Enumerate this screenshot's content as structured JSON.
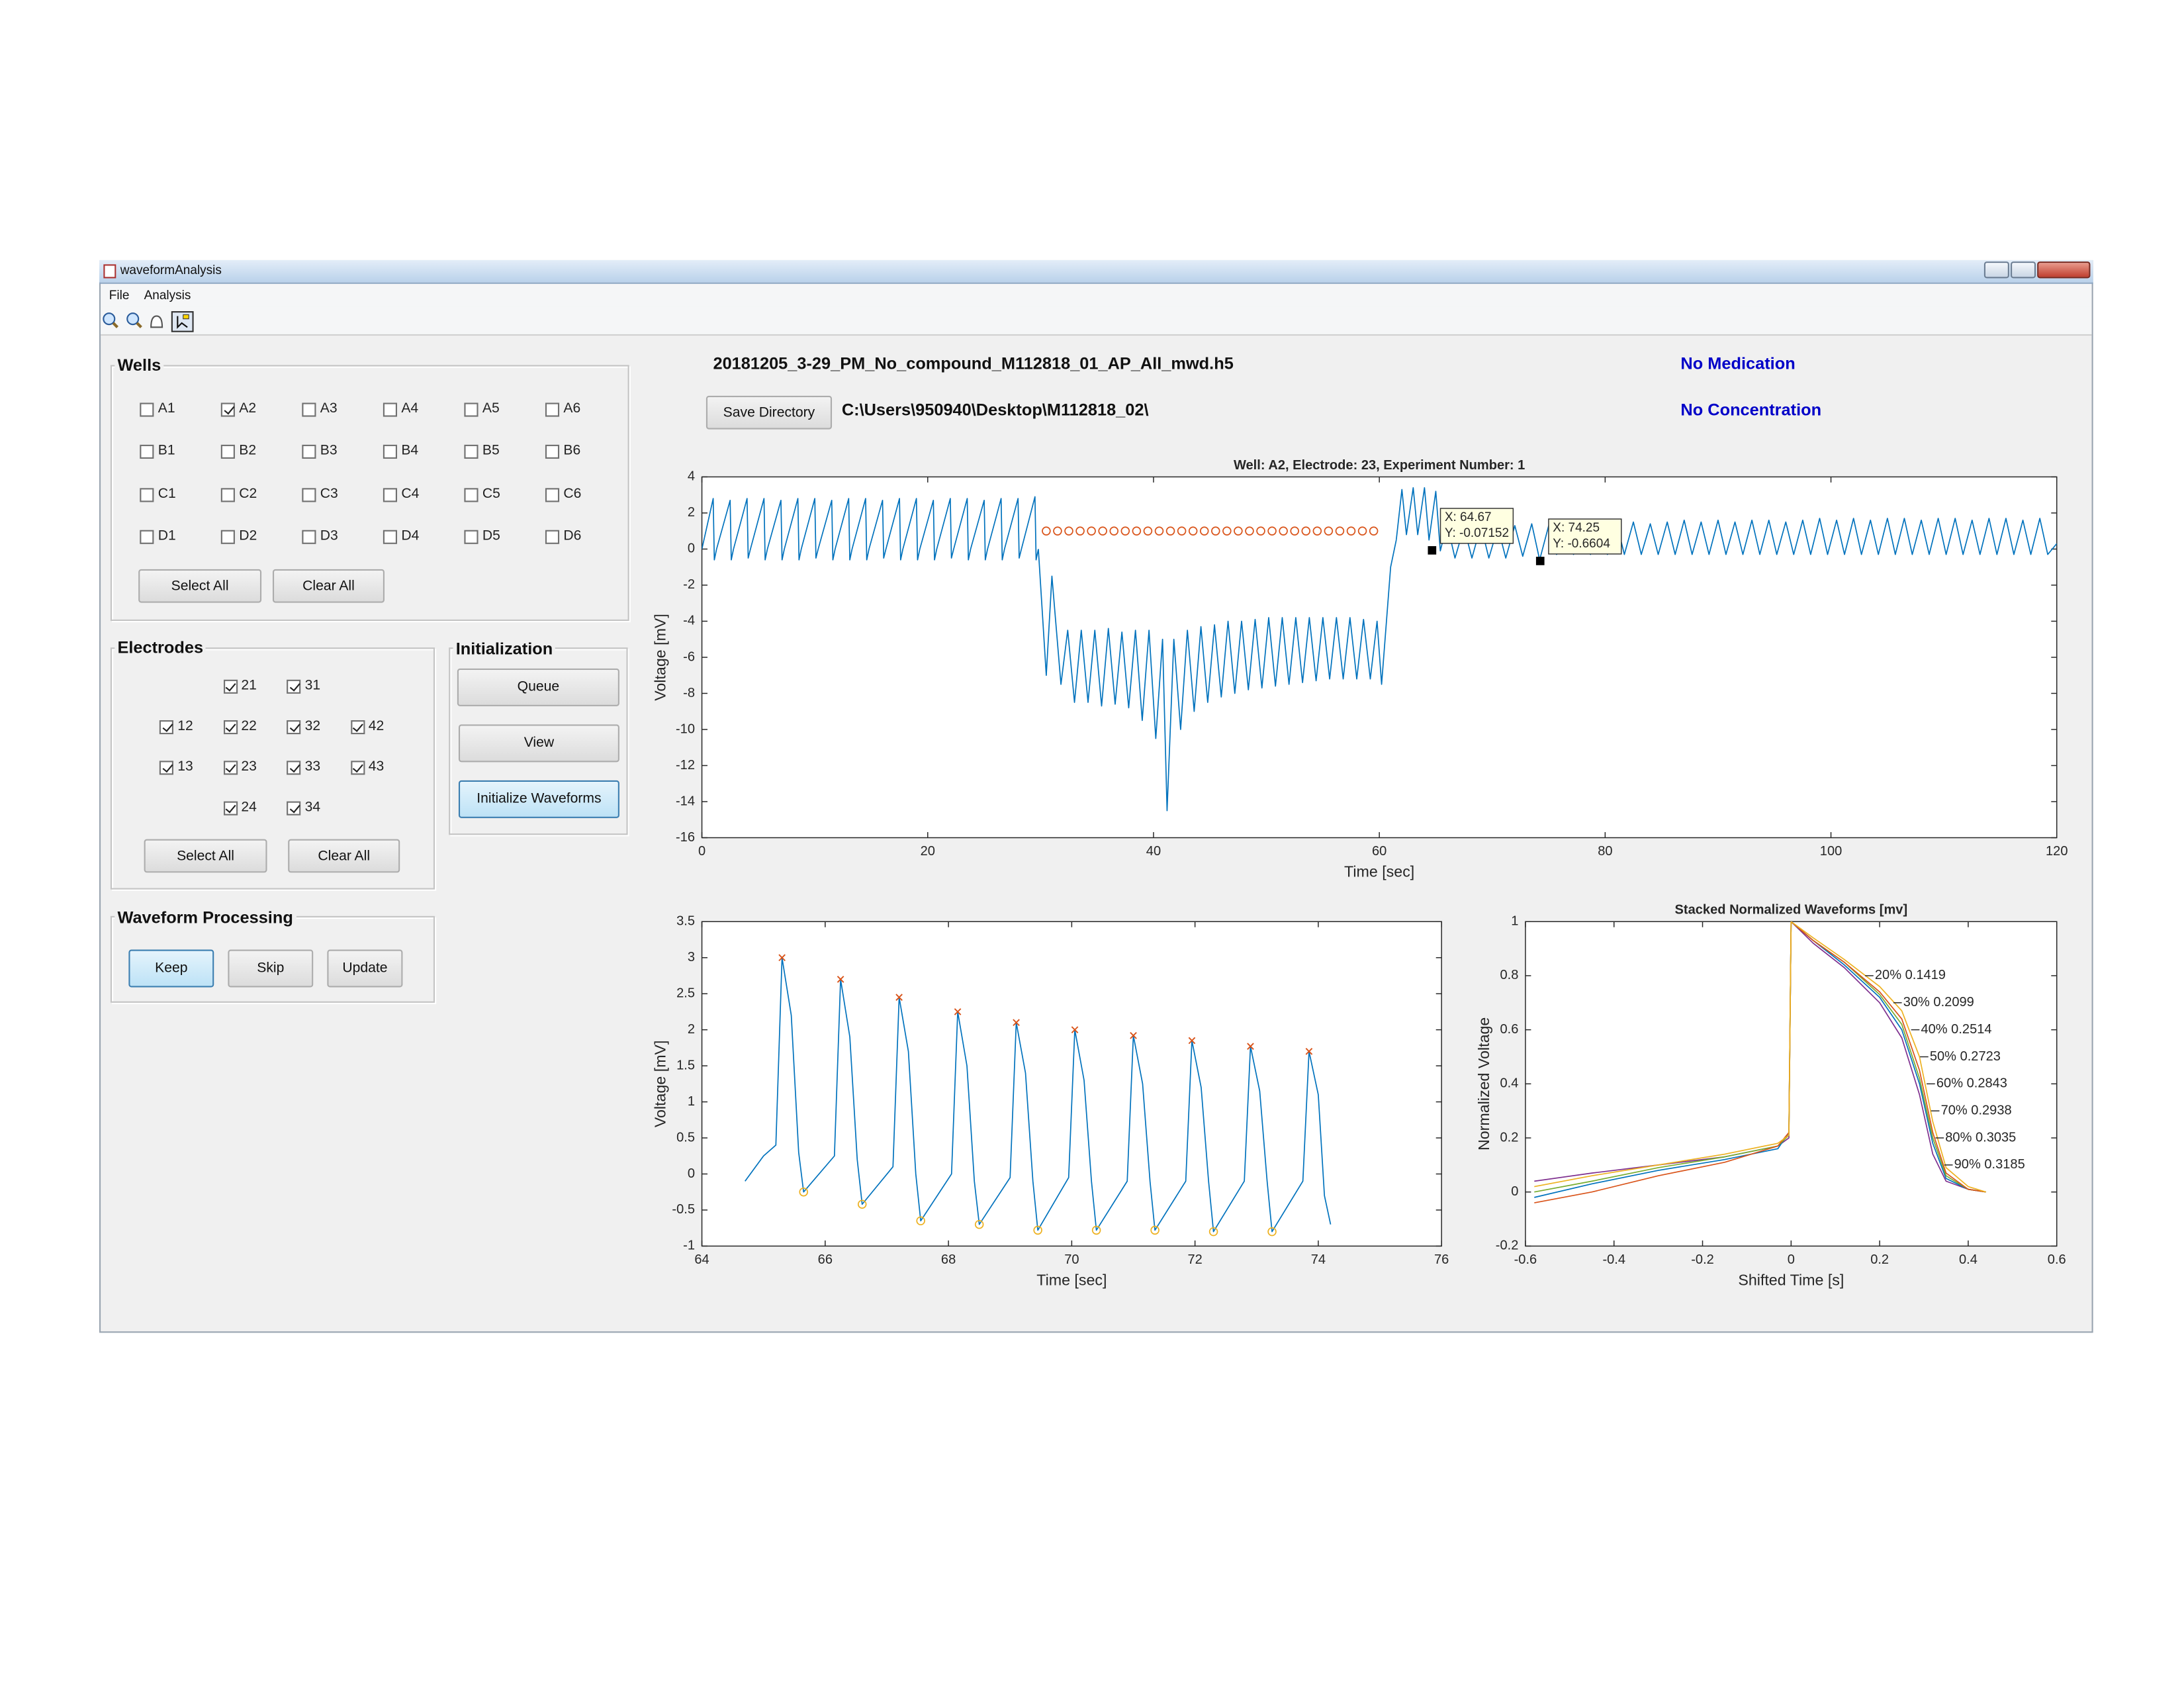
{
  "window": {
    "title": "waveformAnalysis",
    "menu": [
      "File",
      "Analysis"
    ]
  },
  "file_name": "20181205_3-29_PM_No_compound_M112818_01_AP_All_mwd.h5",
  "save_directory_button": {
    "label": "Save Directory",
    "highlighted": false
  },
  "directory": "C:\\Users\\950940\\Desktop\\M112818_02\\",
  "medication": "No Medication",
  "concentration": "No Concentration",
  "wells": {
    "title": "Wells",
    "items": [
      {
        "label": "A1",
        "checked": false
      },
      {
        "label": "A2",
        "checked": true
      },
      {
        "label": "A3",
        "checked": false
      },
      {
        "label": "A4",
        "checked": false
      },
      {
        "label": "A5",
        "checked": false
      },
      {
        "label": "A6",
        "checked": false
      },
      {
        "label": "B1",
        "checked": false
      },
      {
        "label": "B2",
        "checked": false
      },
      {
        "label": "B3",
        "checked": false
      },
      {
        "label": "B4",
        "checked": false
      },
      {
        "label": "B5",
        "checked": false
      },
      {
        "label": "B6",
        "checked": false
      },
      {
        "label": "C1",
        "checked": false
      },
      {
        "label": "C2",
        "checked": false
      },
      {
        "label": "C3",
        "checked": false
      },
      {
        "label": "C4",
        "checked": false
      },
      {
        "label": "C5",
        "checked": false
      },
      {
        "label": "C6",
        "checked": false
      },
      {
        "label": "D1",
        "checked": false
      },
      {
        "label": "D2",
        "checked": false
      },
      {
        "label": "D3",
        "checked": false
      },
      {
        "label": "D4",
        "checked": false
      },
      {
        "label": "D5",
        "checked": false
      },
      {
        "label": "D6",
        "checked": false
      }
    ],
    "buttons": [
      {
        "label": "Select All",
        "highlighted": false
      },
      {
        "label": "Clear All",
        "highlighted": false
      }
    ]
  },
  "electrodes": {
    "title": "Electrodes",
    "items": [
      {
        "label": "21",
        "checked": true
      },
      {
        "label": "31",
        "checked": true
      },
      {
        "label": "12",
        "checked": true
      },
      {
        "label": "22",
        "checked": true
      },
      {
        "label": "32",
        "checked": true
      },
      {
        "label": "42",
        "checked": true
      },
      {
        "label": "13",
        "checked": true
      },
      {
        "label": "23",
        "checked": true
      },
      {
        "label": "33",
        "checked": true
      },
      {
        "label": "43",
        "checked": true
      },
      {
        "label": "24",
        "checked": true
      },
      {
        "label": "34",
        "checked": true
      }
    ],
    "buttons": [
      {
        "label": "Select All",
        "highlighted": false
      },
      {
        "label": "Clear All",
        "highlighted": false
      }
    ]
  },
  "initialization": {
    "title": "Initialization",
    "buttons": [
      {
        "label": "Queue",
        "highlighted": false
      },
      {
        "label": "View",
        "highlighted": false
      },
      {
        "label": "Initialize Waveforms",
        "highlighted": true
      }
    ]
  },
  "waveform_processing": {
    "title": "Waveform Processing",
    "buttons": [
      {
        "label": "Keep",
        "highlighted": true
      },
      {
        "label": "Skip",
        "highlighted": false
      },
      {
        "label": "Update",
        "highlighted": false
      }
    ]
  },
  "main_plot": {
    "type": "line",
    "title": "Well: A2, Electrode: 23, Experiment Number: 1",
    "xlabel": "Time [sec]",
    "ylabel": "Voltage [mV]",
    "xlim": [
      0,
      120
    ],
    "xticks": [
      0,
      20,
      40,
      60,
      80,
      100,
      120
    ],
    "ylim": [
      -16,
      4
    ],
    "yticks": [
      -16,
      -14,
      -12,
      -10,
      -8,
      -6,
      -4,
      -2,
      0,
      2,
      4
    ],
    "series": [
      {
        "color": "#0072bd",
        "x": [
          0,
          1,
          1.1,
          1.3,
          2.5,
          2.6,
          2.8,
          4,
          4.1,
          4.3,
          5.5,
          5.6,
          5.8,
          7,
          7.1,
          7.3,
          8.5,
          8.6,
          8.8,
          10,
          10.1,
          10.3,
          11.5,
          11.6,
          11.8,
          13,
          13.1,
          13.3,
          14.5,
          14.6,
          14.8,
          16,
          16.1,
          16.3,
          17.5,
          17.6,
          17.8,
          19,
          19.1,
          19.3,
          20.5,
          20.6,
          20.8,
          22,
          22.1,
          22.3,
          23.5,
          23.6,
          23.8,
          25,
          25.1,
          25.3,
          26.5,
          26.6,
          26.8,
          28,
          28.1,
          28.3,
          29.5,
          29.6,
          29.8
        ],
        "y": [
          0,
          2.8,
          -0.6,
          0,
          2.7,
          -0.6,
          0,
          2.8,
          -0.5,
          0,
          2.8,
          -0.6,
          0,
          2.7,
          -0.6,
          0,
          2.8,
          -0.6,
          0,
          2.8,
          -0.5,
          0,
          2.7,
          -0.6,
          0,
          2.8,
          -0.6,
          0,
          2.8,
          -0.6,
          0,
          2.7,
          -0.5,
          0,
          2.8,
          -0.6,
          0,
          2.8,
          -0.6,
          0,
          2.7,
          -0.6,
          0,
          2.8,
          -0.5,
          0,
          2.8,
          -0.6,
          0,
          2.7,
          -0.6,
          0,
          2.8,
          -0.6,
          0,
          2.8,
          -0.5,
          0,
          2.9,
          -0.6,
          0
        ]
      },
      {
        "color": "#0072bd",
        "x": [
          29.8,
          30.5,
          31,
          31.8,
          32.4,
          33,
          33.6,
          34.2,
          34.8,
          35.4,
          36,
          36.6,
          37.2,
          37.8,
          38.4,
          39,
          39.6,
          40.2,
          40.8,
          41.2,
          41.8,
          42.4,
          43,
          43.6,
          44.2,
          44.8,
          45.4,
          46,
          46.6,
          47.2,
          47.8,
          48.4,
          49,
          49.6,
          50.2,
          50.8,
          51.4,
          52,
          52.6,
          53.2,
          53.8,
          54.4,
          55,
          55.6,
          56.2,
          56.8,
          57.4,
          58,
          58.6,
          59.2,
          59.8,
          60.2,
          61,
          61.5
        ],
        "y": [
          0,
          -7,
          -1.5,
          -7.5,
          -4.5,
          -8.5,
          -4.5,
          -8.5,
          -4.5,
          -8.7,
          -4.4,
          -8.6,
          -4.6,
          -8.8,
          -4.5,
          -9.5,
          -4.5,
          -10.5,
          -5,
          -14.5,
          -5,
          -10,
          -4.5,
          -9,
          -4.3,
          -8.5,
          -4.2,
          -8.2,
          -4,
          -8,
          -4,
          -7.8,
          -3.9,
          -7.7,
          -3.8,
          -7.6,
          -3.8,
          -7.5,
          -3.8,
          -7.4,
          -3.8,
          -7.3,
          -3.8,
          -7.2,
          -3.8,
          -7.2,
          -3.8,
          -7.2,
          -3.9,
          -7.2,
          -4,
          -7.5,
          -1,
          0.5
        ]
      },
      {
        "color": "#0072bd",
        "x": [
          61.5,
          62,
          62.4,
          63,
          63.4,
          64,
          64.4,
          65,
          65.4,
          66,
          66.7,
          67.5,
          68.2,
          69,
          69.7,
          70.5,
          71.2,
          72,
          72.7,
          73.5,
          74.2,
          75,
          75.7,
          76.5,
          77.2,
          78,
          78.7,
          79.5,
          80.2,
          81,
          81.7,
          82.5,
          83.2,
          84,
          84.7,
          85.5,
          86.2,
          87,
          87.7,
          88.5,
          89.2,
          90,
          90.7,
          91.5,
          92.2,
          93,
          93.7,
          94.5,
          95.2,
          96,
          96.7,
          97.5,
          98.2,
          99,
          99.7,
          100.5,
          101.2,
          102,
          102.7,
          103.5,
          104.2,
          105,
          105.7,
          106.5,
          107.2,
          108,
          108.7,
          109.5,
          110.2,
          111,
          111.7,
          112.5,
          113.2,
          114,
          114.7,
          115.5,
          116.2,
          117,
          117.7,
          118.5,
          119.2,
          120
        ],
        "y": [
          0.5,
          3.3,
          0.8,
          3.4,
          0.8,
          3.4,
          0.5,
          3.2,
          -0.1,
          1.4,
          -0.5,
          1.2,
          -0.5,
          1.3,
          -0.5,
          1.2,
          -0.5,
          1.3,
          -0.4,
          1.4,
          -0.6,
          1.3,
          -0.3,
          1.4,
          -0.3,
          1.5,
          -0.3,
          1.4,
          -0.3,
          1.5,
          -0.3,
          1.5,
          -0.3,
          1.4,
          -0.3,
          1.5,
          -0.3,
          1.6,
          -0.3,
          1.5,
          -0.3,
          1.6,
          -0.3,
          1.5,
          -0.3,
          1.6,
          -0.3,
          1.6,
          -0.3,
          1.5,
          -0.3,
          1.6,
          -0.3,
          1.7,
          -0.3,
          1.6,
          -0.3,
          1.7,
          -0.3,
          1.6,
          -0.3,
          1.7,
          -0.3,
          1.7,
          -0.3,
          1.6,
          -0.3,
          1.7,
          -0.3,
          1.7,
          -0.3,
          1.6,
          -0.3,
          1.7,
          -0.3,
          1.7,
          -0.3,
          1.6,
          -0.3,
          1.7,
          -0.3,
          0.3
        ]
      }
    ],
    "markers": [
      {
        "shape": "circle",
        "color": "#d95319",
        "x": [
          30.5,
          31.5,
          32.5,
          33.5,
          34.5,
          35.5,
          36.5,
          37.5,
          38.5,
          39.5,
          40.5,
          41.5,
          42.5,
          43.5,
          44.5,
          45.5,
          46.5,
          47.5,
          48.5,
          49.5,
          50.5,
          51.5,
          52.5,
          53.5,
          54.5,
          55.5,
          56.5,
          57.5,
          58.5,
          59.5
        ],
        "y": [
          1,
          1,
          1,
          1,
          1,
          1,
          1,
          1,
          1,
          1,
          1,
          1,
          1,
          1,
          1,
          1,
          1,
          1,
          1,
          1,
          1,
          1,
          1,
          1,
          1,
          1,
          1,
          1,
          1,
          1
        ]
      }
    ],
    "data_tips": [
      {
        "x": 64.67,
        "y": -0.07152,
        "x_label": "X: 64.67",
        "y_label": "Y: -0.07152"
      },
      {
        "x": 74.25,
        "y": -0.6604,
        "x_label": "X: 74.25",
        "y_label": "Y: -0.6604"
      }
    ]
  },
  "detail_plot": {
    "type": "line",
    "xlabel": "Time [sec]",
    "ylabel": "Voltage [mV]",
    "xlim": [
      64,
      76
    ],
    "xticks": [
      64,
      66,
      68,
      70,
      72,
      74,
      76
    ],
    "ylim": [
      -1,
      3.5
    ],
    "yticks": [
      -1,
      -0.5,
      0,
      0.5,
      1,
      1.5,
      2,
      2.5,
      3,
      3.5
    ],
    "series": [
      {
        "color": "#0072bd",
        "x": [
          64.7,
          65.0,
          65.2,
          65.3,
          65.45,
          65.57,
          65.65,
          66.15,
          66.25,
          66.4,
          66.52,
          66.6,
          67.1,
          67.2,
          67.35,
          67.47,
          67.55,
          68.05,
          68.15,
          68.3,
          68.42,
          68.5,
          69.0,
          69.1,
          69.25,
          69.37,
          69.45,
          69.95,
          70.05,
          70.2,
          70.32,
          70.4,
          70.9,
          71.0,
          71.15,
          71.27,
          71.35,
          71.85,
          71.95,
          72.1,
          72.22,
          72.3,
          72.8,
          72.9,
          73.05,
          73.17,
          73.25,
          73.75,
          73.85,
          74.0,
          74.1,
          74.2
        ],
        "y": [
          -0.1,
          0.25,
          0.4,
          3.0,
          2.2,
          0.3,
          -0.25,
          0.25,
          2.7,
          1.9,
          0.2,
          -0.42,
          0.1,
          2.45,
          1.7,
          0,
          -0.65,
          0,
          2.25,
          1.5,
          -0.1,
          -0.7,
          -0.05,
          2.1,
          1.4,
          -0.1,
          -0.78,
          -0.05,
          2.0,
          1.3,
          -0.1,
          -0.78,
          -0.1,
          1.92,
          1.25,
          -0.1,
          -0.78,
          -0.1,
          1.85,
          1.2,
          -0.1,
          -0.8,
          -0.1,
          1.77,
          1.15,
          -0.1,
          -0.8,
          -0.1,
          1.7,
          1.1,
          -0.3,
          -0.7
        ]
      }
    ],
    "markers": [
      {
        "shape": "x",
        "color": "#d95319",
        "x": [
          65.3,
          66.25,
          67.2,
          68.15,
          69.1,
          70.05,
          71.0,
          71.95,
          72.9,
          73.85
        ],
        "y": [
          3.0,
          2.7,
          2.45,
          2.25,
          2.1,
          2.0,
          1.92,
          1.85,
          1.77,
          1.7
        ]
      },
      {
        "shape": "circle",
        "color": "#edb120",
        "x": [
          65.65,
          66.6,
          67.55,
          68.5,
          69.45,
          70.4,
          71.35,
          72.3,
          73.25
        ],
        "y": [
          -0.25,
          -0.42,
          -0.65,
          -0.7,
          -0.78,
          -0.78,
          -0.78,
          -0.8,
          -0.8
        ]
      }
    ]
  },
  "stacked_plot": {
    "type": "line",
    "title": "Stacked Normalized Waveforms [mv]",
    "xlabel": "Shifted Time [s]",
    "ylabel": "Normalized Voltage",
    "xlim": [
      -0.6,
      0.6
    ],
    "xticks": [
      -0.6,
      -0.4,
      -0.2,
      0,
      0.2,
      0.4,
      0.6
    ],
    "ylim": [
      -0.2,
      1
    ],
    "yticks": [
      -0.2,
      0,
      0.2,
      0.4,
      0.6,
      0.8,
      1
    ],
    "series": [
      {
        "color": "#7e2f8e",
        "x": [
          -0.58,
          -0.45,
          -0.3,
          -0.15,
          -0.03,
          -0.005,
          0,
          0.05,
          0.12,
          0.2,
          0.25,
          0.29,
          0.32,
          0.35,
          0.4,
          0.44
        ],
        "y": [
          0.04,
          0.07,
          0.1,
          0.13,
          0.17,
          0.2,
          1,
          0.92,
          0.83,
          0.7,
          0.57,
          0.36,
          0.14,
          0.04,
          0.01,
          0
        ]
      },
      {
        "color": "#0072bd",
        "x": [
          -0.58,
          -0.45,
          -0.3,
          -0.15,
          -0.03,
          -0.005,
          0,
          0.05,
          0.12,
          0.2,
          0.25,
          0.29,
          0.32,
          0.35,
          0.4,
          0.44
        ],
        "y": [
          -0.02,
          0.03,
          0.08,
          0.12,
          0.16,
          0.22,
          1,
          0.93,
          0.84,
          0.72,
          0.6,
          0.4,
          0.18,
          0.05,
          0.01,
          0
        ]
      },
      {
        "color": "#77ac30",
        "x": [
          -0.58,
          -0.45,
          -0.3,
          -0.15,
          -0.03,
          -0.005,
          0,
          0.05,
          0.12,
          0.2,
          0.25,
          0.29,
          0.32,
          0.35,
          0.4,
          0.44
        ],
        "y": [
          0,
          0.04,
          0.09,
          0.13,
          0.17,
          0.21,
          1,
          0.93,
          0.85,
          0.73,
          0.62,
          0.42,
          0.2,
          0.06,
          0.01,
          0
        ]
      },
      {
        "color": "#d95319",
        "x": [
          -0.58,
          -0.45,
          -0.3,
          -0.15,
          -0.03,
          -0.005,
          0,
          0.05,
          0.12,
          0.2,
          0.25,
          0.29,
          0.32,
          0.35,
          0.4,
          0.44
        ],
        "y": [
          -0.04,
          0,
          0.06,
          0.11,
          0.17,
          0.22,
          1,
          0.93,
          0.85,
          0.74,
          0.64,
          0.45,
          0.22,
          0.07,
          0.01,
          0
        ]
      },
      {
        "color": "#edb120",
        "x": [
          -0.58,
          -0.45,
          -0.3,
          -0.15,
          -0.03,
          -0.005,
          0,
          0.05,
          0.12,
          0.2,
          0.25,
          0.29,
          0.32,
          0.35,
          0.4,
          0.44
        ],
        "y": [
          0.02,
          0.06,
          0.1,
          0.14,
          0.18,
          0.21,
          1,
          0.94,
          0.86,
          0.76,
          0.67,
          0.5,
          0.26,
          0.09,
          0.02,
          0
        ]
      }
    ],
    "annotations": [
      {
        "text": "20% 0.1419",
        "x": 0.186,
        "y": 0.8
      },
      {
        "text": "30% 0.2099",
        "x": 0.25,
        "y": 0.7
      },
      {
        "text": "40% 0.2514",
        "x": 0.29,
        "y": 0.6
      },
      {
        "text": "50% 0.2723",
        "x": 0.31,
        "y": 0.5
      },
      {
        "text": "60% 0.2843",
        "x": 0.325,
        "y": 0.4
      },
      {
        "text": "70% 0.2938",
        "x": 0.335,
        "y": 0.3
      },
      {
        "text": "80% 0.3035",
        "x": 0.345,
        "y": 0.2
      },
      {
        "text": "90% 0.3185",
        "x": 0.365,
        "y": 0.1
      }
    ]
  }
}
